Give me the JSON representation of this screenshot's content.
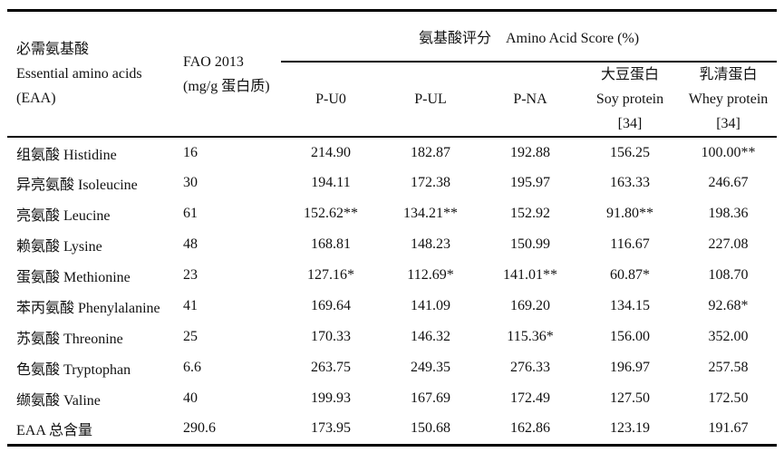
{
  "chart_data": {
    "type": "table",
    "header": {
      "eaa_column": [
        "必需氨基酸",
        "Essential amino acids",
        "(EAA)"
      ],
      "fao_column": [
        "FAO 2013",
        "(mg/g 蛋白质)"
      ],
      "score_group": "氨基酸评分　Amino Acid Score (%)",
      "score_columns": [
        [
          "P-U0"
        ],
        [
          "P-UL"
        ],
        [
          "P-NA"
        ],
        [
          "大豆蛋白",
          "Soy protein",
          "[34]"
        ],
        [
          "乳清蛋白",
          "Whey protein",
          "[34]"
        ]
      ]
    },
    "rows": [
      {
        "name": "组氨酸 Histidine",
        "fao": "16",
        "scores": [
          "214.90",
          "182.87",
          "192.88",
          "156.25",
          "100.00**"
        ]
      },
      {
        "name": "异亮氨酸 Isoleucine",
        "fao": "30",
        "scores": [
          "194.11",
          "172.38",
          "195.97",
          "163.33",
          "246.67"
        ]
      },
      {
        "name": "亮氨酸 Leucine",
        "fao": "61",
        "scores": [
          "152.62**",
          "134.21**",
          "152.92",
          "91.80**",
          "198.36"
        ]
      },
      {
        "name": "赖氨酸 Lysine",
        "fao": "48",
        "scores": [
          "168.81",
          "148.23",
          "150.99",
          "116.67",
          "227.08"
        ]
      },
      {
        "name": "蛋氨酸 Methionine",
        "fao": "23",
        "scores": [
          "127.16*",
          "112.69*",
          "141.01**",
          "60.87*",
          "108.70"
        ]
      },
      {
        "name": "苯丙氨酸 Phenylalanine",
        "fao": "41",
        "scores": [
          "169.64",
          "141.09",
          "169.20",
          "134.15",
          "92.68*"
        ]
      },
      {
        "name": "苏氨酸 Threonine",
        "fao": "25",
        "scores": [
          "170.33",
          "146.32",
          "115.36*",
          "156.00",
          "352.00"
        ]
      },
      {
        "name": "色氨酸 Tryptophan",
        "fao": "6.6",
        "scores": [
          "263.75",
          "249.35",
          "276.33",
          "196.97",
          "257.58"
        ]
      },
      {
        "name": "缬氨酸 Valine",
        "fao": "40",
        "scores": [
          "199.93",
          "167.69",
          "172.49",
          "127.50",
          "172.50"
        ]
      },
      {
        "name": "EAA 总含量",
        "fao": "290.6",
        "scores": [
          "173.95",
          "150.68",
          "162.86",
          "123.19",
          "191.67"
        ]
      }
    ]
  },
  "colors": {
    "text": "#111111",
    "background": "#ffffff",
    "rule": "#000000"
  }
}
